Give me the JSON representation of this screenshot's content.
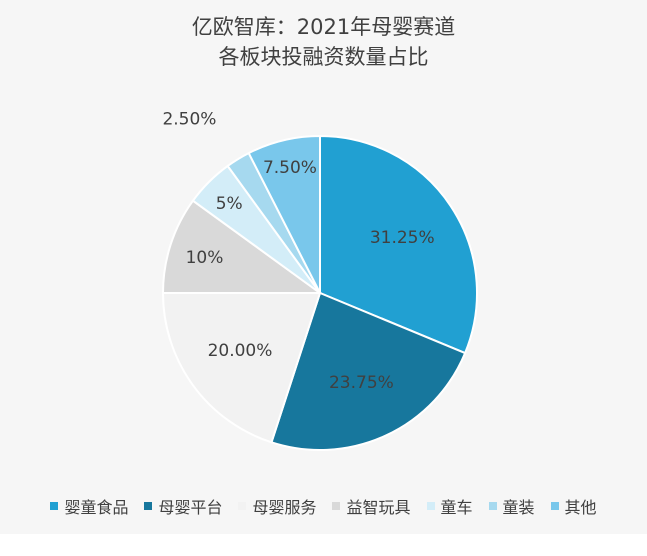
{
  "chart_data": {
    "type": "pie",
    "title": [
      "亿欧智库：2021年母婴赛道",
      "各板块投融资数量占比"
    ],
    "slices": [
      {
        "label": "婴童食品",
        "value": 31.25,
        "value_label": "31.25%",
        "color": "#21a0d2"
      },
      {
        "label": "母婴平台",
        "value": 23.75,
        "value_label": "23.75%",
        "color": "#17779d"
      },
      {
        "label": "母婴服务",
        "value": 20.0,
        "value_label": "20.00%",
        "color": "#f2f2f2"
      },
      {
        "label": "益智玩具",
        "value": 10.0,
        "value_label": "10%",
        "color": "#d9d9d9"
      },
      {
        "label": "童车",
        "value": 5.0,
        "value_label": "5%",
        "color": "#d3edf8"
      },
      {
        "label": "童装",
        "value": 2.5,
        "value_label": "2.50%",
        "color": "#a6d9ef"
      },
      {
        "label": "其他",
        "value": 7.5,
        "value_label": "7.50%",
        "color": "#79c7eb"
      }
    ],
    "start_angle": "12-o'clock",
    "direction": "clockwise",
    "legend_position": "bottom"
  }
}
